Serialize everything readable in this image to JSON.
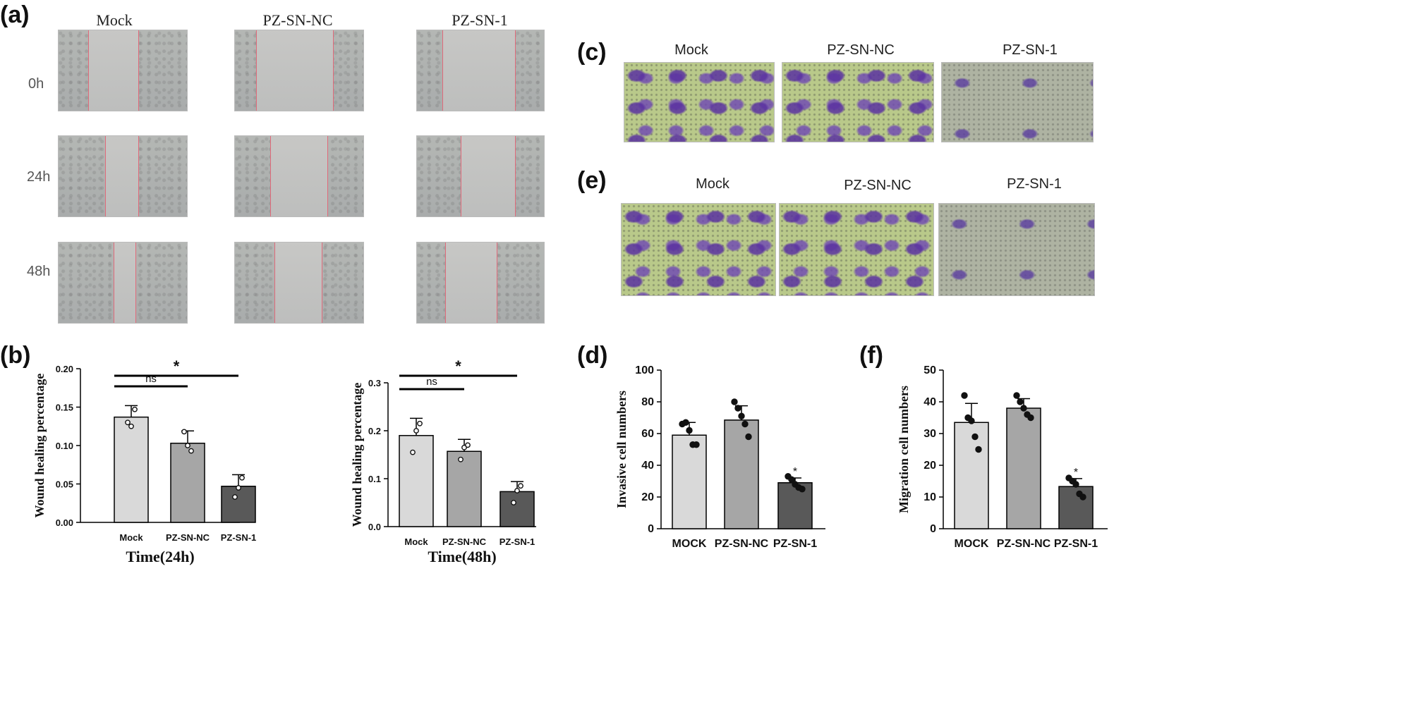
{
  "panel_labels": {
    "a": "(a)",
    "b": "(b)",
    "c": "(c)",
    "d": "(d)",
    "e": "(e)",
    "f": "(f)"
  },
  "panel_a": {
    "columns": [
      "Mock",
      "PZ-SN-NC",
      "PZ-SN-1"
    ],
    "rows": [
      "0h",
      "24h",
      "48h"
    ]
  },
  "panel_c": {
    "columns": [
      "Mock",
      "PZ-SN-NC",
      "PZ-SN-1"
    ]
  },
  "panel_e": {
    "columns": [
      "Mock",
      "PZ-SN-NC",
      "PZ-SN-1"
    ]
  },
  "colors": {
    "bar_light": "#d9d9d9",
    "bar_mid": "#a6a6a6",
    "bar_dark": "#595959",
    "stain_bg": "#b9c98a",
    "stain_cell": "#5a32a0",
    "scratch_line": "#e06a7a"
  },
  "chart_data": [
    {
      "id": "b1",
      "type": "bar",
      "categories": [
        "Mock",
        "PZ-SN-NC",
        "PZ-SN-1"
      ],
      "values": [
        0.137,
        0.103,
        0.047
      ],
      "errors": [
        0.015,
        0.016,
        0.015
      ],
      "points": [
        [
          0.13,
          0.125,
          0.147
        ],
        [
          0.118,
          0.1,
          0.093
        ],
        [
          0.033,
          0.045,
          0.058
        ]
      ],
      "ylabel": "Wound healing percentage",
      "xlabel": "Time(24h)",
      "ylim": [
        0,
        0.2
      ],
      "yticks": [
        "0.00",
        "0.05",
        "0.10",
        "0.15",
        "0.20"
      ],
      "significance": [
        {
          "label": "ns",
          "from": 0,
          "to": 1
        },
        {
          "label": "*",
          "from": 0,
          "to": 2
        }
      ]
    },
    {
      "id": "b2",
      "type": "bar",
      "categories": [
        "Mock",
        "PZ-SN-NC",
        "PZ-SN-1"
      ],
      "values": [
        0.19,
        0.157,
        0.073
      ],
      "errors": [
        0.036,
        0.025,
        0.021
      ],
      "points": [
        [
          0.155,
          0.2,
          0.215
        ],
        [
          0.14,
          0.165,
          0.17
        ],
        [
          0.05,
          0.075,
          0.085
        ]
      ],
      "ylabel": "Wound healing percentage",
      "xlabel": "Time(48h)",
      "ylim": [
        0,
        0.3
      ],
      "yticks": [
        "0.0",
        "0.1",
        "0.2",
        "0.3"
      ],
      "significance": [
        {
          "label": "ns",
          "from": 0,
          "to": 1
        },
        {
          "label": "*",
          "from": 0,
          "to": 2
        }
      ]
    },
    {
      "id": "d",
      "type": "bar",
      "categories": [
        "MOCK",
        "PZ-SN-NC",
        "PZ-SN-1"
      ],
      "values": [
        59,
        68.5,
        29
      ],
      "errors": [
        8,
        9,
        3
      ],
      "points": [
        [
          66,
          67,
          62,
          53,
          53
        ],
        [
          80,
          76,
          71,
          66,
          58
        ],
        [
          33,
          31,
          28,
          26,
          25
        ]
      ],
      "ylabel": "Invasive cell numbers",
      "xlabel": "",
      "ylim": [
        0,
        100
      ],
      "yticks": [
        "0",
        "20",
        "40",
        "60",
        "80",
        "100"
      ],
      "star_over": [
        2
      ]
    },
    {
      "id": "f",
      "type": "bar",
      "categories": [
        "MOCK",
        "PZ-SN-NC",
        "PZ-SN-1"
      ],
      "values": [
        33.5,
        38,
        13.3
      ],
      "errors": [
        6,
        3,
        2.5
      ],
      "points": [
        [
          42,
          35,
          34,
          29,
          25
        ],
        [
          42,
          40,
          38,
          36,
          35
        ],
        [
          16,
          15,
          14,
          11,
          10
        ]
      ],
      "ylabel": "Migration cell numbers",
      "xlabel": "",
      "ylim": [
        0,
        50
      ],
      "yticks": [
        "0",
        "10",
        "20",
        "30",
        "40",
        "50"
      ],
      "star_over": [
        2
      ]
    }
  ]
}
